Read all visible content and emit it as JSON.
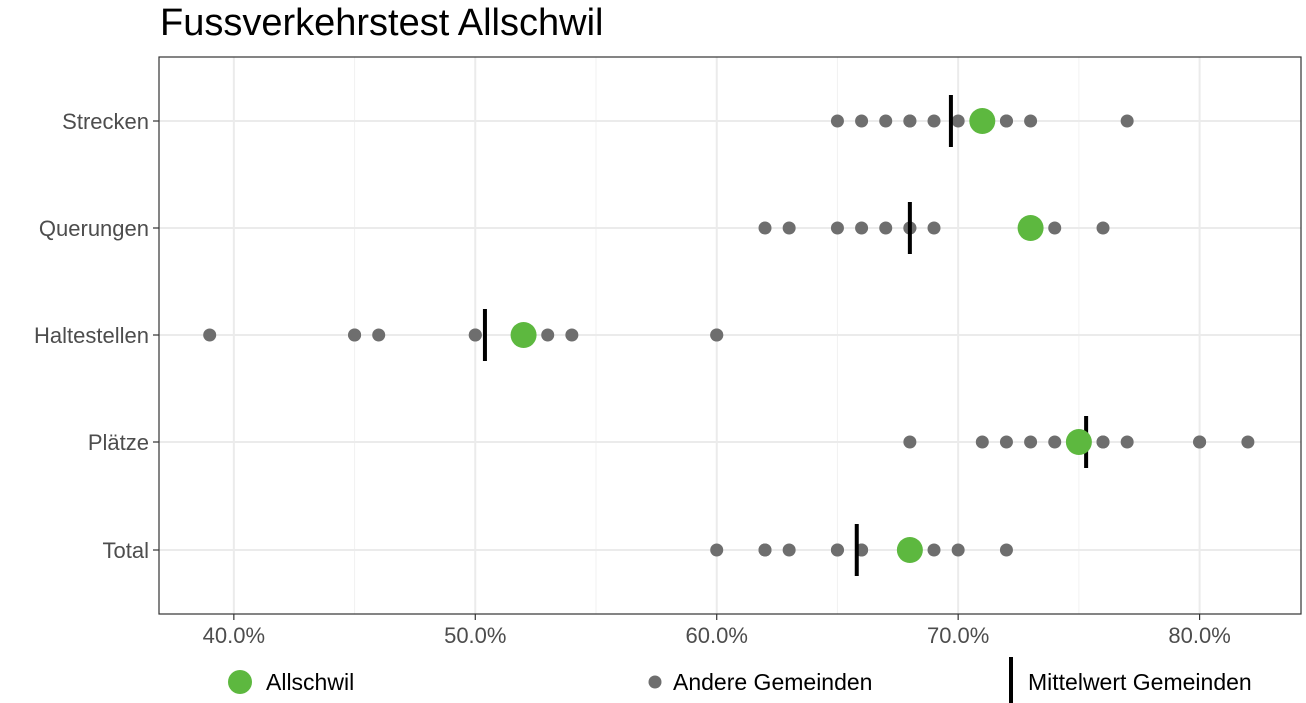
{
  "chart_data": {
    "type": "scatter",
    "title": "Fussverkehrstest Allschwil",
    "xlabel": "",
    "ylabel": "",
    "xlim": [
      0.369,
      0.842
    ],
    "grid": true,
    "legend_position": "bottom",
    "x_ticks": [
      0.4,
      0.5,
      0.6,
      0.7,
      0.8
    ],
    "x_tick_labels": [
      "40.0%",
      "50.0%",
      "60.0%",
      "70.0%",
      "80.0%"
    ],
    "categories": [
      "Strecken",
      "Querungen",
      "Haltestellen",
      "Plätze",
      "Total"
    ],
    "series": [
      {
        "name": "Andere Gemeinden",
        "color": "#6e6e6e",
        "values": [
          [
            0.65,
            0.66,
            0.67,
            0.68,
            0.68,
            0.69,
            0.7,
            0.72,
            0.72,
            0.73,
            0.77
          ],
          [
            0.62,
            0.63,
            0.65,
            0.66,
            0.67,
            0.68,
            0.68,
            0.69,
            0.74,
            0.76
          ],
          [
            0.39,
            0.45,
            0.45,
            0.46,
            0.5,
            0.5,
            0.53,
            0.54,
            0.6,
            0.6
          ],
          [
            0.68,
            0.71,
            0.72,
            0.73,
            0.74,
            0.75,
            0.76,
            0.76,
            0.77,
            0.8,
            0.8,
            0.82
          ],
          [
            0.6,
            0.62,
            0.62,
            0.63,
            0.65,
            0.65,
            0.66,
            0.66,
            0.69,
            0.7,
            0.72
          ]
        ]
      },
      {
        "name": "Allschwil",
        "color": "#5db83f",
        "values": [
          0.71,
          0.73,
          0.52,
          0.75,
          0.68
        ]
      },
      {
        "name": "Mittelwert Gemeinden",
        "color": "#000000",
        "values": [
          0.697,
          0.68,
          0.504,
          0.753,
          0.658
        ]
      }
    ]
  },
  "legend": {
    "items": [
      {
        "label": "Allschwil",
        "icon": "green-circle-icon"
      },
      {
        "label": "Andere Gemeinden",
        "icon": "gray-dot-icon"
      },
      {
        "label": "Mittelwert Gemeinden",
        "icon": "black-bar-icon"
      }
    ]
  }
}
